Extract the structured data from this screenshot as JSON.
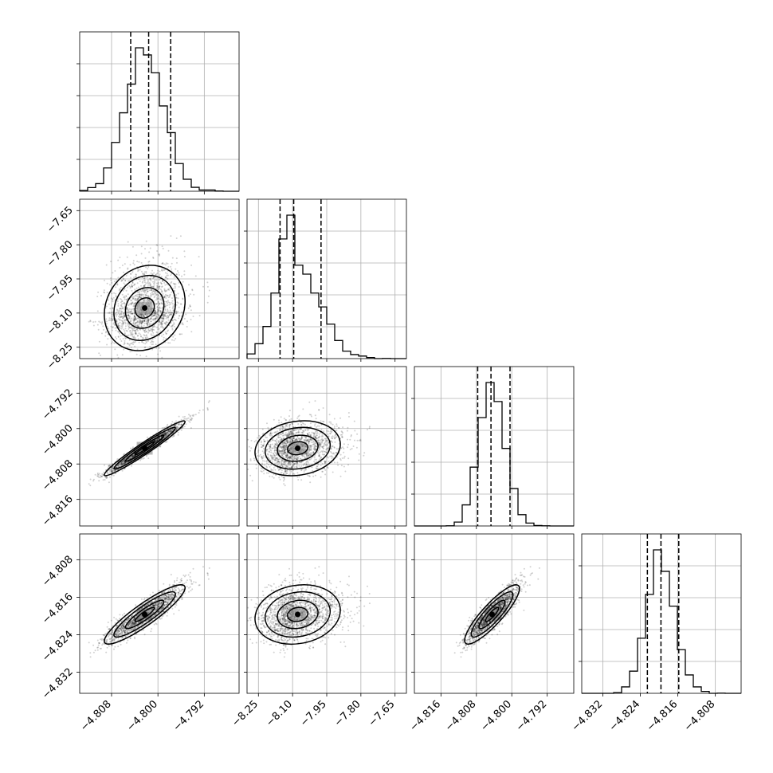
{
  "chart_data": {
    "type": "corner",
    "grid": true,
    "parameters": [
      {
        "range": [
          -4.8135,
          -4.786
        ],
        "ticks": [
          -4.808,
          -4.8,
          -4.792
        ],
        "tick_labels": [
          "−4.808",
          "−4.800",
          "−4.792"
        ],
        "center": -4.8023,
        "spread": 0.0032,
        "quantiles": [
          -4.8047,
          -4.8016,
          -4.7978
        ],
        "skew": 0.2,
        "rho_with_first": 1.0
      },
      {
        "range": [
          -8.3,
          -7.6
        ],
        "ticks": [
          -8.25,
          -8.1,
          -7.95,
          -7.8,
          -7.65
        ],
        "tick_labels": [
          "−8.25",
          "−8.10",
          "−7.95",
          "−7.80",
          "−7.65"
        ],
        "center": -8.09,
        "spread": 0.07,
        "quantiles": [
          -8.155,
          -8.095,
          -7.975
        ],
        "skew": 1.5,
        "rho_with_first": 0.15
      },
      {
        "range": [
          -4.822,
          -4.786
        ],
        "ticks": [
          -4.816,
          -4.808,
          -4.8,
          -4.792
        ],
        "tick_labels": [
          "−4.816",
          "−4.808",
          "−4.800",
          "−4.792"
        ],
        "center": -4.8045,
        "spread": 0.0028,
        "quantiles": [
          -4.8077,
          -4.8047,
          -4.8004
        ],
        "skew": 0.3,
        "rho_with_first": 0.97
      },
      {
        "range": [
          -4.8365,
          -4.8025
        ],
        "ticks": [
          -4.832,
          -4.824,
          -4.816,
          -4.808
        ],
        "tick_labels": [
          "−4.832",
          "−4.824",
          "−4.816",
          "−4.808"
        ],
        "center": -4.8198,
        "spread": 0.0028,
        "quantiles": [
          -4.8225,
          -4.8196,
          -4.8158
        ],
        "skew": 0.4,
        "rho_with_first": 0.9
      }
    ]
  }
}
